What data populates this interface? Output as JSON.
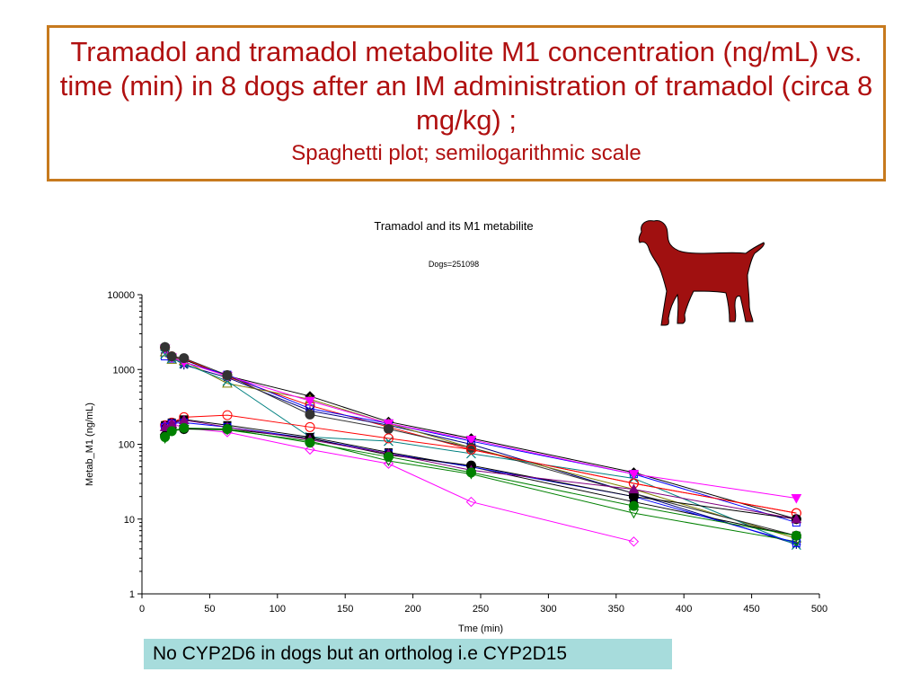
{
  "header": {
    "title": "Tramadol and tramadol metabolite M1 concentration (ng/mL) vs. time (min) in 8 dogs after an IM administration of tramadol (circa 8 mg/kg) ;",
    "subtitle": "Spaghetti plot; semilogarithmic  scale"
  },
  "note": "No CYP2D6 in dogs but an ortholog i.e CYP2D15",
  "dog_icon": "dog-silhouette-icon",
  "colors": {
    "border": "#c77a1e",
    "title_text": "#b01010",
    "note_bg": "#a7dcdc",
    "dog": "#a01010"
  },
  "chart_data": {
    "type": "line",
    "title": "Tramadol and its M1 metabilite",
    "subtitle": "Dogs=251098",
    "xlabel": "Tme (min)",
    "ylabel": "Metab_M1 (ng/mL)",
    "xlim": [
      0,
      500
    ],
    "ylim": [
      1,
      10000
    ],
    "yscale": "log",
    "grid": false,
    "xticks": [
      0,
      50,
      100,
      150,
      200,
      250,
      300,
      350,
      400,
      450,
      500
    ],
    "yticks": [
      1,
      10,
      100,
      1000,
      10000
    ],
    "ytick_labels": [
      "1",
      "10",
      "100",
      "1000",
      "10000"
    ],
    "series": [
      {
        "color": "#000000",
        "marker": "diamond-filled",
        "x": [
          17,
          22,
          31,
          63,
          124,
          182,
          243,
          363,
          483
        ],
        "y": [
          2000,
          1450,
          1350,
          820,
          440,
          200,
          120,
          42,
          10
        ]
      },
      {
        "color": "#ff0000",
        "marker": "circle",
        "x": [
          17,
          22,
          31,
          63,
          124,
          182,
          243,
          363,
          483
        ],
        "y": [
          1950,
          1500,
          1400,
          800,
          330,
          170,
          85,
          30,
          12
        ]
      },
      {
        "color": "#0000ff",
        "marker": "square",
        "x": [
          17,
          22,
          31,
          63,
          124,
          182,
          243,
          363,
          483
        ],
        "y": [
          1500,
          1400,
          1250,
          850,
          300,
          190,
          110,
          40,
          9
        ]
      },
      {
        "color": "#000080",
        "marker": "star",
        "x": [
          17,
          22,
          31,
          63,
          124,
          182,
          243,
          363,
          483
        ],
        "y": [
          1800,
          1450,
          1150,
          780,
          280,
          180,
          100,
          22,
          4.6
        ]
      },
      {
        "color": "#808000",
        "marker": "triangle",
        "x": [
          17,
          22,
          31,
          63,
          124,
          182,
          243,
          363,
          483
        ],
        "y": [
          1700,
          1350,
          1300,
          650,
          400,
          190,
          90,
          25,
          5.5
        ]
      },
      {
        "color": "#008080",
        "marker": "x",
        "x": [
          17,
          22,
          31,
          63,
          124,
          182,
          243,
          363,
          483
        ],
        "y": [
          1600,
          1400,
          1200,
          700,
          125,
          110,
          75,
          35,
          4.5
        ]
      },
      {
        "color": "#ff00ff",
        "marker": "triangle-down-filled",
        "x": [
          17,
          22,
          31,
          63,
          124,
          182,
          243,
          363,
          483
        ],
        "y": [
          1900,
          1450,
          1250,
          820,
          380,
          190,
          115,
          40,
          19
        ]
      },
      {
        "color": "#333333",
        "marker": "circle-filled",
        "x": [
          17,
          22,
          31,
          63,
          124,
          182,
          243,
          363,
          483
        ],
        "y": [
          2000,
          1500,
          1420,
          840,
          250,
          160,
          90,
          22,
          6
        ]
      },
      {
        "color": "#ff0000",
        "marker": "circle",
        "x": [
          17,
          22,
          31,
          63,
          124,
          182,
          243,
          363,
          483
        ],
        "y": [
          180,
          195,
          230,
          245,
          170,
          120,
          85,
          30,
          12
        ]
      },
      {
        "color": "#000000",
        "marker": "square-filled",
        "x": [
          17,
          22,
          31,
          63,
          124,
          182,
          243,
          363,
          483
        ],
        "y": [
          180,
          195,
          215,
          180,
          125,
          78,
          50,
          17,
          6
        ]
      },
      {
        "color": "#ff00ff",
        "marker": "diamond",
        "x": [
          17,
          22,
          31,
          63,
          124,
          182,
          243,
          363
        ],
        "y": [
          175,
          190,
          165,
          145,
          85,
          55,
          17,
          5
        ]
      },
      {
        "color": "#008000",
        "marker": "triangle-down",
        "x": [
          17,
          22,
          31,
          63,
          124,
          182,
          243,
          363,
          483
        ],
        "y": [
          120,
          150,
          160,
          155,
          110,
          60,
          40,
          12,
          5
        ]
      },
      {
        "color": "#0000ff",
        "marker": "square",
        "x": [
          17,
          22,
          31,
          63,
          124,
          182,
          243,
          363,
          483
        ],
        "y": [
          170,
          190,
          195,
          170,
          120,
          75,
          50,
          20,
          4.8
        ]
      },
      {
        "color": "#000000",
        "marker": "circle-filled",
        "x": [
          17,
          22,
          31,
          63,
          124,
          182,
          243,
          363,
          483
        ],
        "y": [
          130,
          155,
          160,
          160,
          120,
          72,
          52,
          20,
          10
        ]
      },
      {
        "color": "#800080",
        "marker": "triangle-filled",
        "x": [
          17,
          22,
          31,
          63,
          124,
          182,
          243,
          363,
          483
        ],
        "y": [
          170,
          190,
          210,
          170,
          115,
          75,
          45,
          25,
          10
        ]
      },
      {
        "color": "#008000",
        "marker": "circle-filled",
        "x": [
          17,
          22,
          31,
          63,
          124,
          182,
          243,
          363,
          483
        ],
        "y": [
          125,
          150,
          165,
          160,
          105,
          68,
          42,
          15,
          6
        ]
      }
    ]
  }
}
